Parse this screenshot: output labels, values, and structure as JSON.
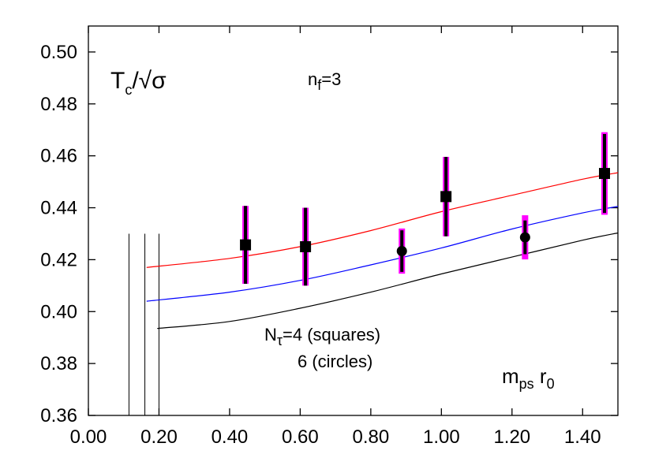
{
  "chart_data": {
    "type": "scatter",
    "xlim": [
      0.0,
      1.5
    ],
    "ylim": [
      0.36,
      0.51
    ],
    "x_ticks": [
      "0.00",
      "0.20",
      "0.40",
      "0.60",
      "0.80",
      "1.00",
      "1.20",
      "1.40"
    ],
    "x_tick_values": [
      0.0,
      0.2,
      0.4,
      0.6,
      0.8,
      1.0,
      1.2,
      1.4
    ],
    "y_ticks": [
      "0.36",
      "0.38",
      "0.40",
      "0.42",
      "0.44",
      "0.46",
      "0.48",
      "0.50"
    ],
    "y_tick_values": [
      0.36,
      0.38,
      0.4,
      0.42,
      0.44,
      0.46,
      0.48,
      0.5
    ],
    "grid": false,
    "annotations": {
      "title_main": "T",
      "title_sub": "c",
      "title_rest": "/√σ",
      "nf_main": "n",
      "nf_sub": "f",
      "nf_rest": "=3",
      "ntau_main": "N",
      "ntau_sub": "τ",
      "ntau_rest": "=4 (squares)",
      "circles_label": "6 (circles)",
      "xlabel_main": "m",
      "xlabel_sub": "ps",
      "xlabel_mid": " r",
      "xlabel_sub2": "0"
    },
    "series": [
      {
        "marker": "square",
        "color": "#000000",
        "errorbar_color": "#ff00ff",
        "points": [
          {
            "x": 0.445,
            "y": 0.4257,
            "err_inner": 0.015,
            "err_outer": 0.015
          },
          {
            "x": 0.615,
            "y": 0.425,
            "err_inner": 0.015,
            "err_outer": 0.015
          },
          {
            "x": 1.013,
            "y": 0.4443,
            "err_inner": 0.0153,
            "err_outer": 0.0153
          },
          {
            "x": 1.462,
            "y": 0.4532,
            "err_inner": 0.0152,
            "err_outer": 0.0159
          }
        ]
      },
      {
        "marker": "circle",
        "color": "#000000",
        "errorbar_color": "#ff00ff",
        "points": [
          {
            "x": 0.888,
            "y": 0.4233,
            "err_inner": 0.008,
            "err_outer": 0.0087
          },
          {
            "x": 1.237,
            "y": 0.4286,
            "err_inner": 0.0065,
            "err_outer": 0.0085
          }
        ]
      }
    ],
    "fit_curves": [
      {
        "color": "#ff0000",
        "x": [
          0.165,
          0.4,
          0.6,
          0.8,
          1.0,
          1.2,
          1.4,
          1.5
        ],
        "y": [
          0.417,
          0.4205,
          0.425,
          0.4312,
          0.4385,
          0.4448,
          0.451,
          0.4535
        ]
      },
      {
        "color": "#0000ff",
        "x": [
          0.165,
          0.4,
          0.6,
          0.8,
          1.0,
          1.2,
          1.4,
          1.5
        ],
        "y": [
          0.404,
          0.4075,
          0.412,
          0.418,
          0.4245,
          0.4318,
          0.438,
          0.4405
        ]
      },
      {
        "color": "#000000",
        "x": [
          0.195,
          0.4,
          0.6,
          0.8,
          1.0,
          1.2,
          1.4,
          1.5
        ],
        "y": [
          0.3935,
          0.3962,
          0.4013,
          0.4075,
          0.4145,
          0.421,
          0.4275,
          0.4303
        ]
      }
    ],
    "vertical_lines": [
      {
        "x": 0.115,
        "y_top": 0.43
      },
      {
        "x": 0.16,
        "y_top": 0.43
      },
      {
        "x": 0.2,
        "y_top": 0.43
      }
    ]
  }
}
